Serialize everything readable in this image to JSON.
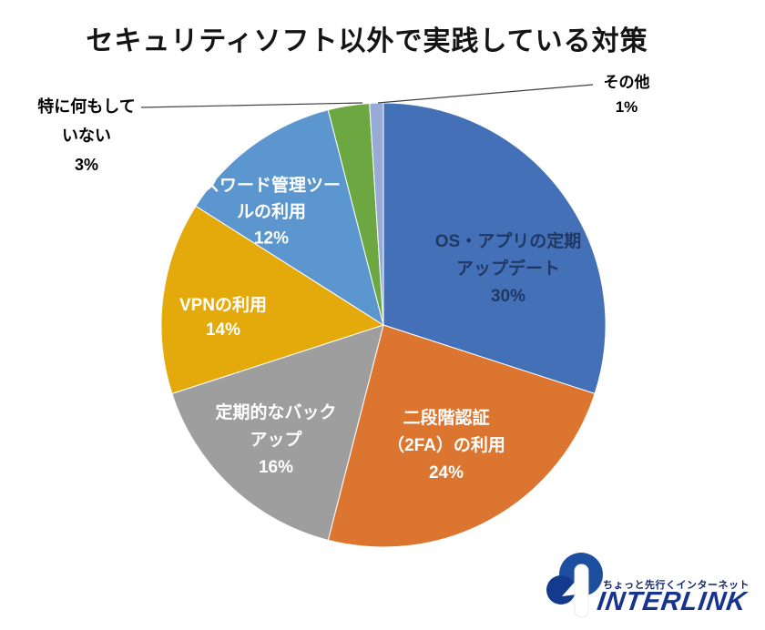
{
  "title": "セキュリティソフト以外で実践している対策",
  "chart_data": {
    "type": "pie",
    "title": "セキュリティソフト以外で実践している対策",
    "start_angle_deg": 0,
    "direction": "clockwise",
    "unit": "%",
    "leader_line_color": "#404040",
    "slices": [
      {
        "name": "OS・アプリの定期アップデート",
        "value": 30,
        "color": "#4470B8",
        "label_color": "#1F3864",
        "label_position": "inside",
        "label_lines": [
          "OS・アプリの定期",
          "アップデート",
          "30%"
        ]
      },
      {
        "name": "二段階認証（2FA）の利用",
        "value": 24,
        "color": "#DC752F",
        "label_color": "#FFFFFF",
        "label_position": "inside",
        "label_lines": [
          "二段階認証",
          "（2FA）の利用",
          "24%"
        ]
      },
      {
        "name": "定期的なバックアップ",
        "value": 16,
        "color": "#9E9E9E",
        "label_color": "#FFFFFF",
        "label_position": "inside",
        "label_lines": [
          "定期的なバック",
          "アップ",
          "16%"
        ]
      },
      {
        "name": "VPNの利用",
        "value": 14,
        "color": "#E4AA0C",
        "label_color": "#FFFFFF",
        "label_position": "inside",
        "label_lines": [
          "VPNの利用",
          "14%"
        ]
      },
      {
        "name": "パスワード管理ツールの利用",
        "value": 12,
        "color": "#5B96CE",
        "label_color": "#FFFFFF",
        "label_position": "inside",
        "label_lines": [
          "スワード管理ツー",
          "ルの利用",
          "12%"
        ]
      },
      {
        "name": "特に何もしていない",
        "value": 3,
        "color": "#6CA742",
        "label_color": "#000000",
        "label_position": "outside-left",
        "label_lines": [
          "特に何もして",
          "いない",
          "3%"
        ]
      },
      {
        "name": "その他",
        "value": 1,
        "color": "#97ABD8",
        "label_color": "#000000",
        "label_position": "outside-right",
        "label_lines": [
          "その他",
          "1%"
        ]
      }
    ]
  },
  "logo": {
    "tagline": "ちょっと先行くインターネット",
    "brand": "INTERLINK",
    "brand_color": "#16338E",
    "tagline_color": "#13266B",
    "circle_large_color": "#1D4FA1",
    "circle_small_color": "#133A8C"
  }
}
